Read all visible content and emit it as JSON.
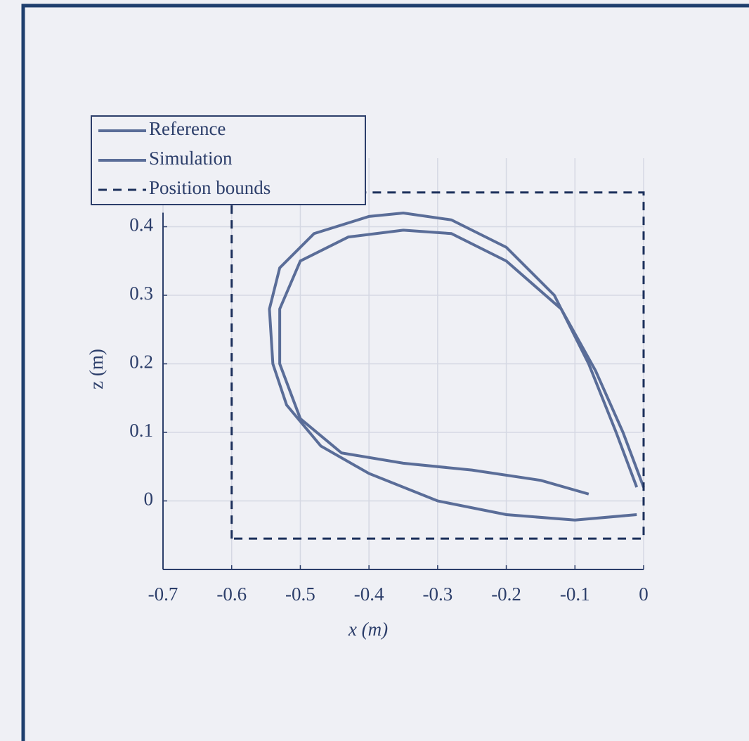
{
  "chart_data": {
    "type": "line",
    "x_label": "x (m)",
    "y_label": "z (m)",
    "xlim": [
      -0.7,
      0
    ],
    "ylim": [
      -0.1,
      0.5
    ],
    "xticks": [
      -0.7,
      -0.6,
      -0.5,
      -0.4,
      -0.3,
      -0.2,
      -0.1,
      0
    ],
    "yticks": [
      0,
      0.1,
      0.2,
      0.3,
      0.4
    ],
    "grid": true,
    "legend": "upper left",
    "series": [
      {
        "name": "Reference",
        "color": "#5a6d98",
        "style": "solid",
        "x": [
          -0.01,
          -0.1,
          -0.2,
          -0.3,
          -0.4,
          -0.47,
          -0.52,
          -0.54,
          -0.545,
          -0.53,
          -0.48,
          -0.4,
          -0.35,
          -0.28,
          -0.2,
          -0.13,
          -0.08,
          -0.04,
          -0.01
        ],
        "values": [
          -0.02,
          -0.028,
          -0.02,
          0.0,
          0.04,
          0.08,
          0.14,
          0.2,
          0.28,
          0.34,
          0.39,
          0.415,
          0.42,
          0.41,
          0.37,
          0.3,
          0.2,
          0.1,
          0.02
        ]
      },
      {
        "name": "Simulation",
        "color": "#5a6d98",
        "style": "solid",
        "x": [
          -0.08,
          -0.15,
          -0.25,
          -0.35,
          -0.44,
          -0.5,
          -0.53,
          -0.53,
          -0.5,
          -0.43,
          -0.35,
          -0.28,
          -0.2,
          -0.12,
          -0.07,
          -0.03,
          0.0
        ],
        "values": [
          0.01,
          0.03,
          0.045,
          0.055,
          0.07,
          0.12,
          0.2,
          0.28,
          0.35,
          0.385,
          0.395,
          0.39,
          0.35,
          0.28,
          0.19,
          0.1,
          0.02
        ]
      },
      {
        "name": "Position bounds",
        "color": "#1b2f5b",
        "style": "dashed",
        "x": [
          -0.6,
          -0.6,
          0,
          0,
          -0.6
        ],
        "values": [
          -0.055,
          0.45,
          0.45,
          -0.055,
          -0.055
        ]
      }
    ]
  }
}
